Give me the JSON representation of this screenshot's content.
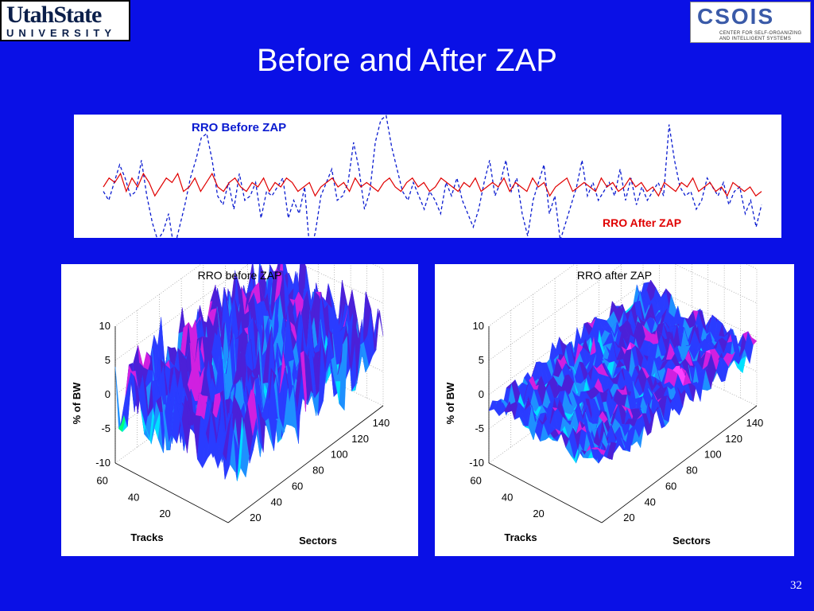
{
  "logos": {
    "left_line1": "UtahState",
    "left_line2": "UNIVERSITY",
    "right_brand": "CSOIS",
    "right_tagline1": "CENTER FOR SELF-ORGANIZING",
    "right_tagline2": "AND INTELLIGENT SYSTEMS"
  },
  "slide": {
    "title": "Before and After ZAP",
    "page_number": "32",
    "colors": {
      "background": "#0a10e6",
      "before_line": "#0a1bd0",
      "after_line": "#e00000"
    }
  },
  "chart_data": [
    {
      "type": "line",
      "series": [
        {
          "name": "RRO  Before ZAP",
          "style": "dashed",
          "color": "#0a1bd0",
          "values": [
            -1,
            -3,
            1,
            5,
            2,
            -2,
            -1,
            6,
            -2,
            -8,
            -12,
            -10,
            -6,
            -14,
            -9,
            -4,
            2,
            6,
            11,
            12,
            6,
            -2,
            -4,
            1,
            -5,
            3,
            -3,
            -2,
            1,
            -7,
            -1,
            -2,
            0,
            2,
            -7,
            -3,
            -6,
            0,
            -15,
            -10,
            -2,
            1,
            4,
            -3,
            -2,
            1,
            10,
            4,
            -5,
            -1,
            10,
            15,
            16,
            9,
            4,
            -1,
            -3,
            1,
            -2,
            -5,
            -1,
            -3,
            -6,
            1,
            -2,
            2,
            -3,
            -6,
            -9,
            -5,
            1,
            6,
            -2,
            1,
            6,
            -1,
            2,
            -6,
            -11,
            -3,
            1,
            5,
            -6,
            -2,
            -12,
            -8,
            -4,
            0,
            6,
            -2,
            1,
            -3,
            -1,
            1,
            -2,
            4,
            -3,
            2,
            -4,
            0,
            -3,
            -1,
            1,
            -2,
            14,
            6,
            0,
            -2,
            -1,
            -5,
            -3,
            2,
            0,
            -2,
            1,
            -4,
            -1,
            0,
            -6,
            -3,
            -9,
            -4
          ]
        },
        {
          "name": "RRO  After ZAP",
          "style": "solid",
          "color": "#e00000",
          "values": [
            0,
            2,
            1,
            3,
            -1,
            2,
            0,
            3,
            1,
            -2,
            0,
            2,
            1,
            3,
            -1,
            0,
            2,
            -1,
            1,
            3,
            0,
            -1,
            1,
            2,
            0,
            -1,
            1,
            0,
            2,
            -1,
            1,
            0,
            2,
            1,
            -1,
            0,
            1,
            -2,
            0,
            1,
            2,
            0,
            1,
            -1,
            2,
            0,
            1,
            0,
            -1,
            1,
            2,
            0,
            -1,
            1,
            2,
            0,
            1,
            -1,
            0,
            2,
            1,
            0,
            -1,
            1,
            0,
            2,
            -1,
            0,
            1,
            0,
            2,
            -1,
            1,
            0,
            -1,
            2,
            0,
            1,
            -2,
            0,
            1,
            2,
            -1,
            0,
            1,
            0,
            -1,
            2,
            0,
            1,
            -1,
            0,
            2,
            0,
            1,
            -1,
            0,
            -2,
            1,
            0,
            -1,
            1,
            0,
            2,
            -1,
            0,
            1,
            -1,
            0,
            -2,
            1,
            0,
            -1,
            0,
            -2,
            -1
          ]
        }
      ]
    },
    {
      "type": "surface",
      "title": "RRO before ZAP",
      "zlabel": "% of BW",
      "xlabel": "Sectors",
      "ylabel": "Tracks",
      "zlim": [
        -10,
        10
      ],
      "xlim": [
        0,
        140
      ],
      "ylim": [
        0,
        60
      ],
      "z_ticks": [
        "10",
        "5",
        "0",
        "-5",
        "-10"
      ],
      "x_ticks": [
        "20",
        "40",
        "60",
        "80",
        "100",
        "120",
        "140"
      ],
      "y_ticks": [
        "20",
        "40",
        "60"
      ],
      "colormap": [
        "#00ff80",
        "#00e0ff",
        "#1e90ff",
        "#2a3cff",
        "#4b20d8",
        "#d020e0",
        "#ff40ff"
      ]
    },
    {
      "type": "surface",
      "title": "RRO after ZAP",
      "zlabel": "% of BW",
      "xlabel": "Sectors",
      "ylabel": "Tracks",
      "zlim": [
        -10,
        10
      ],
      "xlim": [
        0,
        140
      ],
      "ylim": [
        0,
        60
      ],
      "z_ticks": [
        "10",
        "5",
        "0",
        "-5",
        "-10"
      ],
      "x_ticks": [
        "20",
        "40",
        "60",
        "80",
        "100",
        "120",
        "140"
      ],
      "y_ticks": [
        "20",
        "40",
        "60"
      ],
      "colormap": [
        "#00ff80",
        "#00e0ff",
        "#1e90ff",
        "#2a3cff",
        "#4b20d8",
        "#d020e0",
        "#ff40ff"
      ]
    }
  ]
}
